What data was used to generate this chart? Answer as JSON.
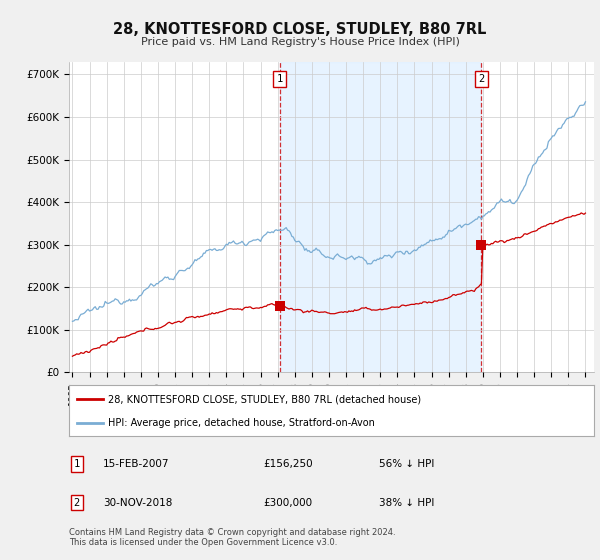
{
  "title": "28, KNOTTESFORD CLOSE, STUDLEY, B80 7RL",
  "subtitle": "Price paid vs. HM Land Registry's House Price Index (HPI)",
  "ylabel_ticks": [
    "£0",
    "£100K",
    "£200K",
    "£300K",
    "£400K",
    "£500K",
    "£600K",
    "£700K"
  ],
  "ytick_values": [
    0,
    100000,
    200000,
    300000,
    400000,
    500000,
    600000,
    700000
  ],
  "ylim": [
    0,
    730000
  ],
  "xlim_start": 1994.8,
  "xlim_end": 2025.5,
  "hpi_color": "#7aadd4",
  "price_color": "#cc0000",
  "marker1_date": 2007.12,
  "marker1_price": 156250,
  "marker2_date": 2018.92,
  "marker2_price": 300000,
  "legend_line1": "28, KNOTTESFORD CLOSE, STUDLEY, B80 7RL (detached house)",
  "legend_line2": "HPI: Average price, detached house, Stratford-on-Avon",
  "footnote": "Contains HM Land Registry data © Crown copyright and database right 2024.\nThis data is licensed under the Open Government Licence v3.0.",
  "background_color": "#f0f0f0",
  "plot_bg_color": "#ffffff",
  "grid_color": "#cccccc",
  "shade_color": "#ddeeff"
}
